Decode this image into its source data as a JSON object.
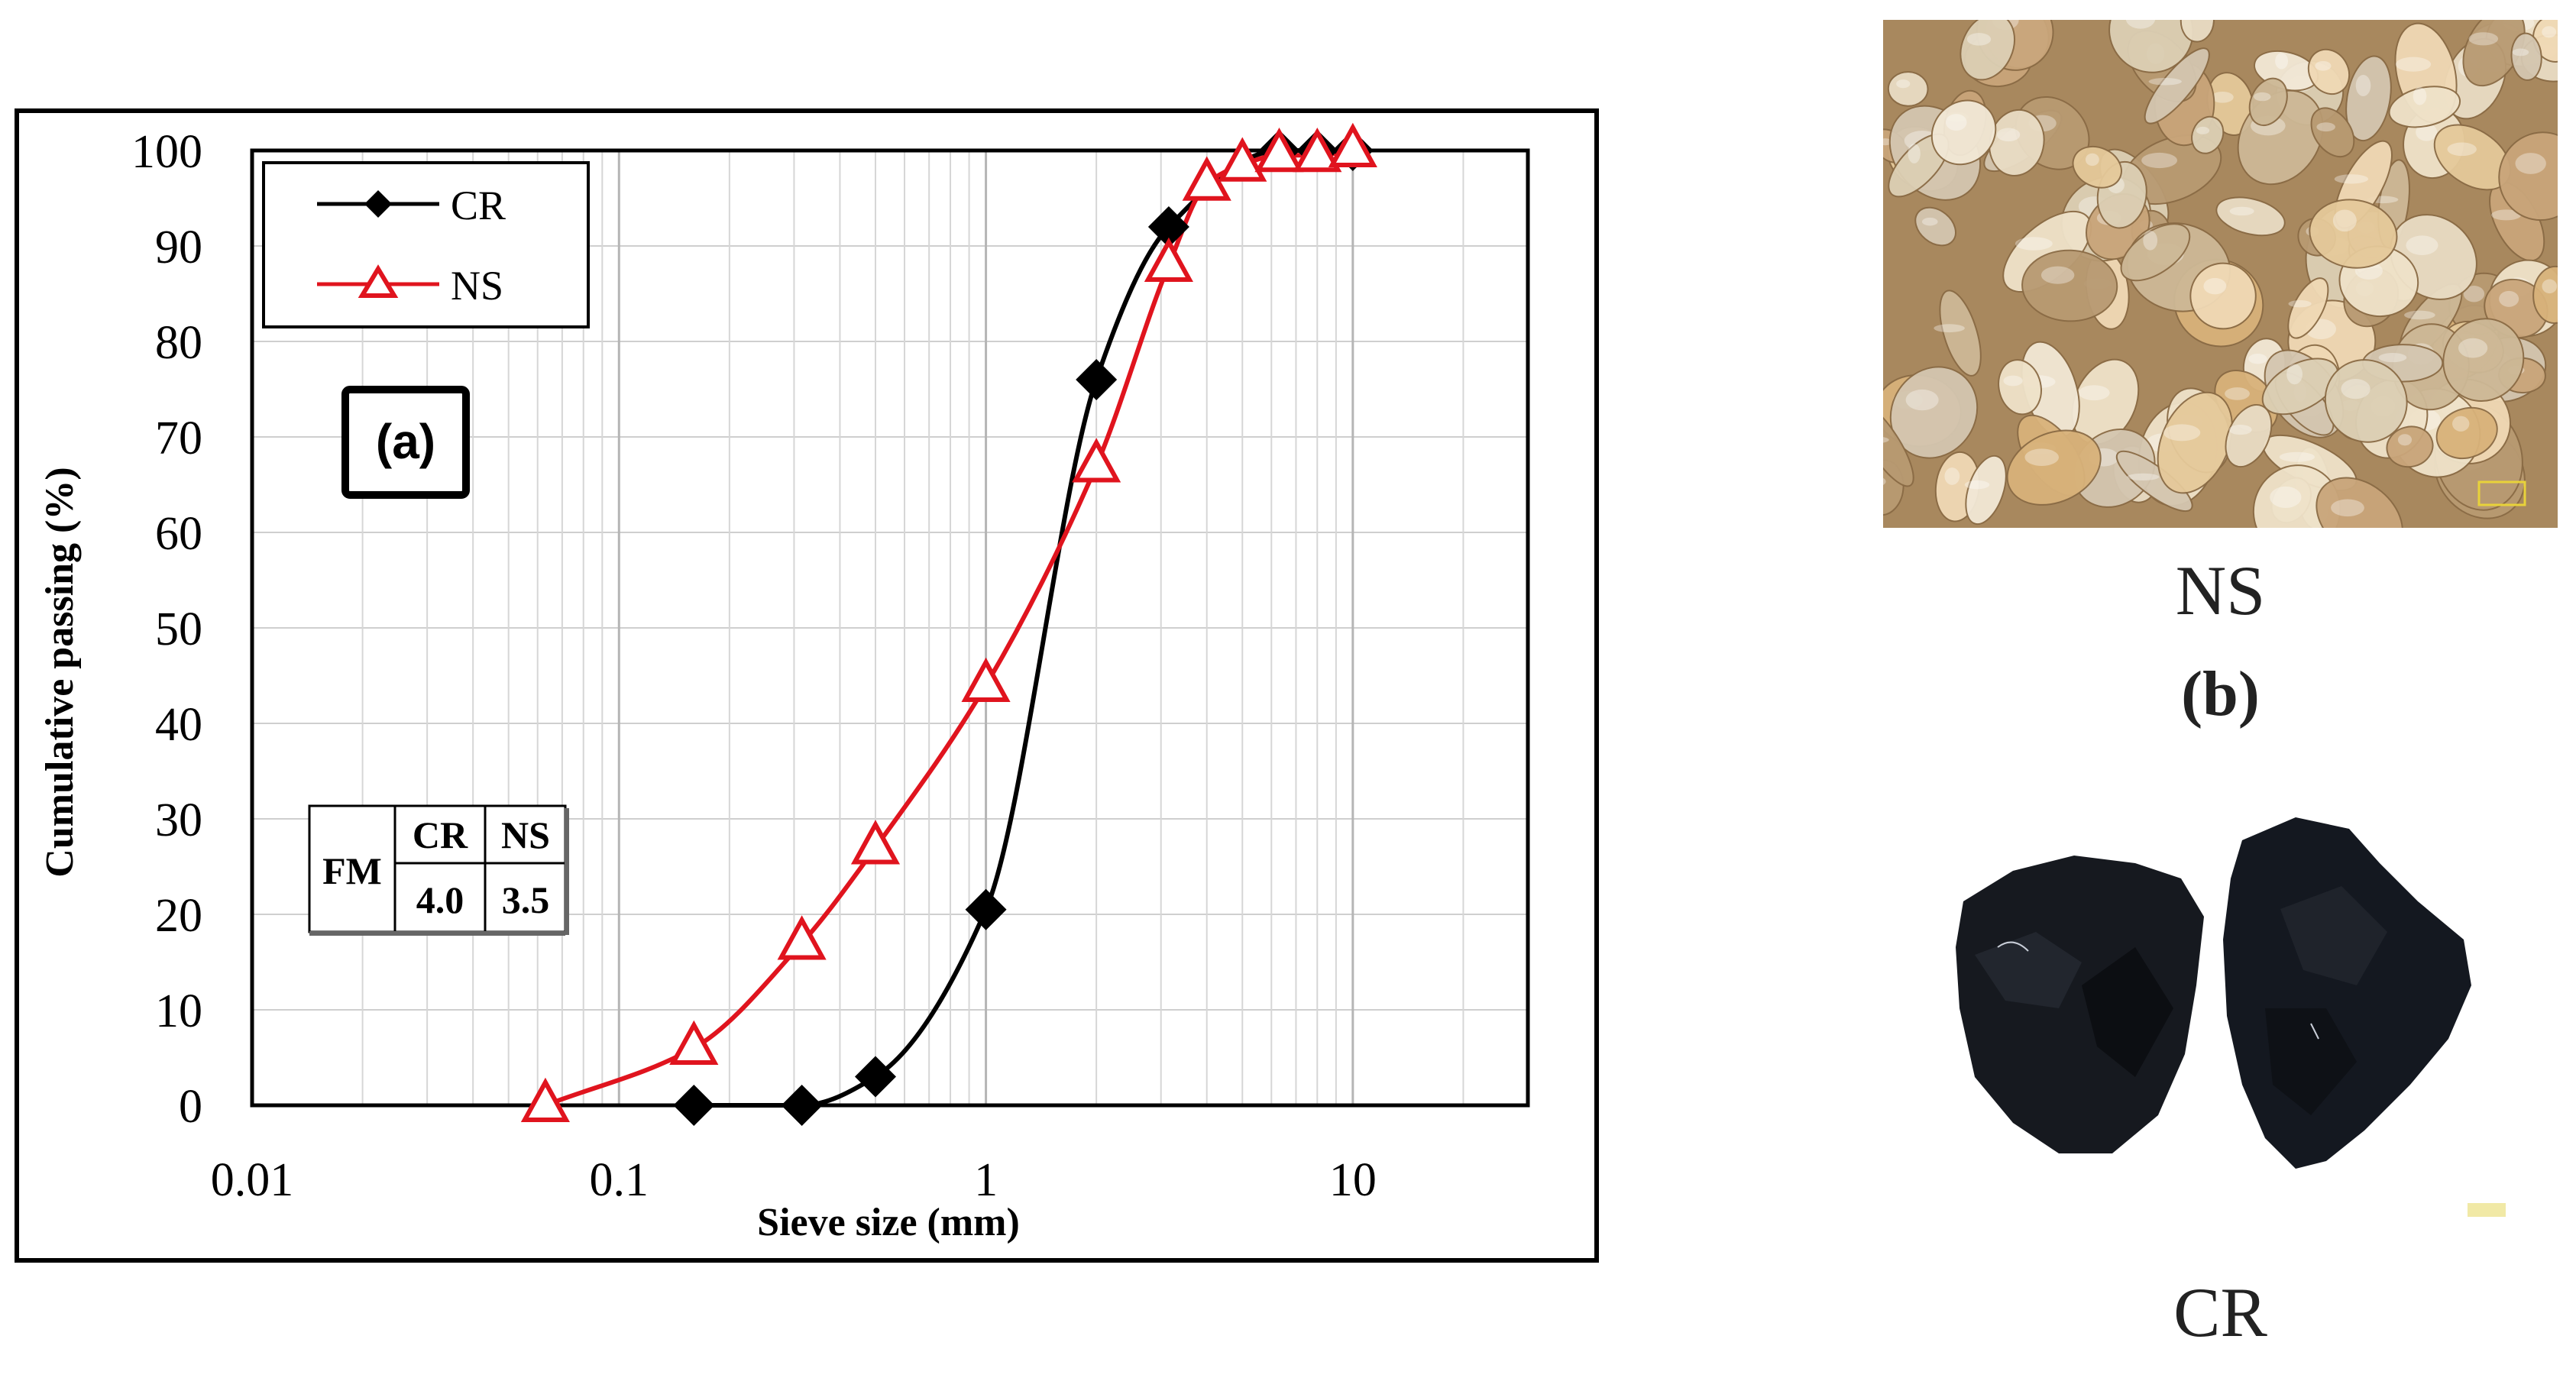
{
  "chart_data": {
    "type": "line",
    "panel_label": "(a)",
    "xlabel": "Sieve size (mm)",
    "ylabel": "Cumulative passing  (%)",
    "xscale": "log",
    "xlim": [
      0.01,
      30
    ],
    "ylim": [
      0,
      100
    ],
    "x_tick_labels": [
      "0.01",
      "0.1",
      "1",
      "10"
    ],
    "x_tick_values": [
      0.01,
      0.1,
      1,
      10
    ],
    "y_tick_labels": [
      "0",
      "10",
      "20",
      "30",
      "40",
      "50",
      "60",
      "70",
      "80",
      "90",
      "100"
    ],
    "y_tick_values": [
      0,
      10,
      20,
      30,
      40,
      50,
      60,
      70,
      80,
      90,
      100
    ],
    "grid": true,
    "legend_position": "top-left",
    "series": [
      {
        "name": "CR",
        "color": "#000000",
        "marker": "diamond",
        "x": [
          0.16,
          0.315,
          0.5,
          1.0,
          2.0,
          3.15,
          6.3,
          8.0,
          10.0
        ],
        "y": [
          0,
          0,
          3,
          20.5,
          76,
          92,
          100,
          100,
          100
        ]
      },
      {
        "name": "NS",
        "color": "#e0141e",
        "marker": "triangle",
        "x": [
          0.063,
          0.16,
          0.315,
          0.5,
          1.0,
          2.0,
          3.15,
          4.0,
          5.0,
          6.3,
          8.0,
          10.0
        ],
        "y": [
          0,
          6,
          17,
          27,
          44,
          67,
          88,
          96.5,
          98.5,
          99.5,
          99.5,
          100
        ]
      }
    ],
    "fm_table": {
      "row_label": "FM",
      "headers": [
        "CR",
        "NS"
      ],
      "values": [
        "4.0",
        "3.5"
      ]
    }
  },
  "photos": {
    "ns_caption": "NS",
    "panel_b_label": "(b)",
    "cr_caption": "CR"
  }
}
